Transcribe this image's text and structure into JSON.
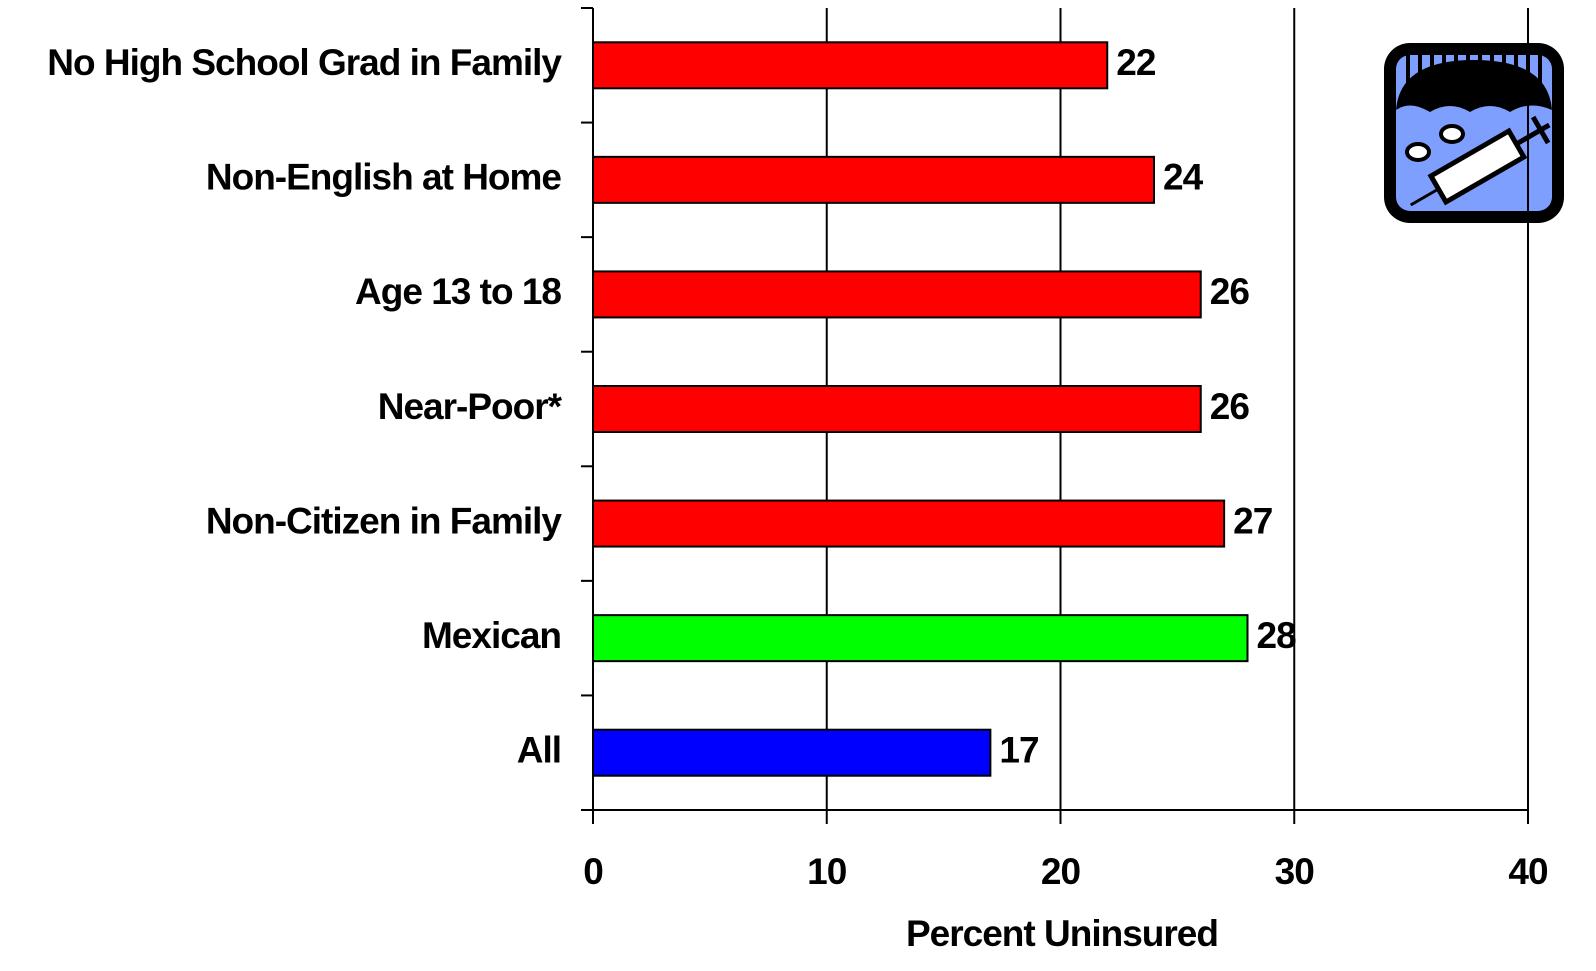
{
  "chart_data": {
    "type": "barh",
    "categories": [
      "No High School Grad in Family",
      "Non-English at Home",
      "Age 13 to 18",
      "Near-Poor*",
      "Non-Citizen in Family",
      "Mexican",
      "All"
    ],
    "values": [
      22,
      24,
      26,
      26,
      27,
      28,
      17
    ],
    "colors": [
      "#ff0000",
      "#ff0000",
      "#ff0000",
      "#ff0000",
      "#ff0000",
      "#00ff00",
      "#0000ff"
    ],
    "xlabel": "Percent Uninsured",
    "xlim": [
      0,
      40
    ],
    "xticks": [
      0,
      10,
      20,
      30,
      40
    ],
    "grid": true
  }
}
